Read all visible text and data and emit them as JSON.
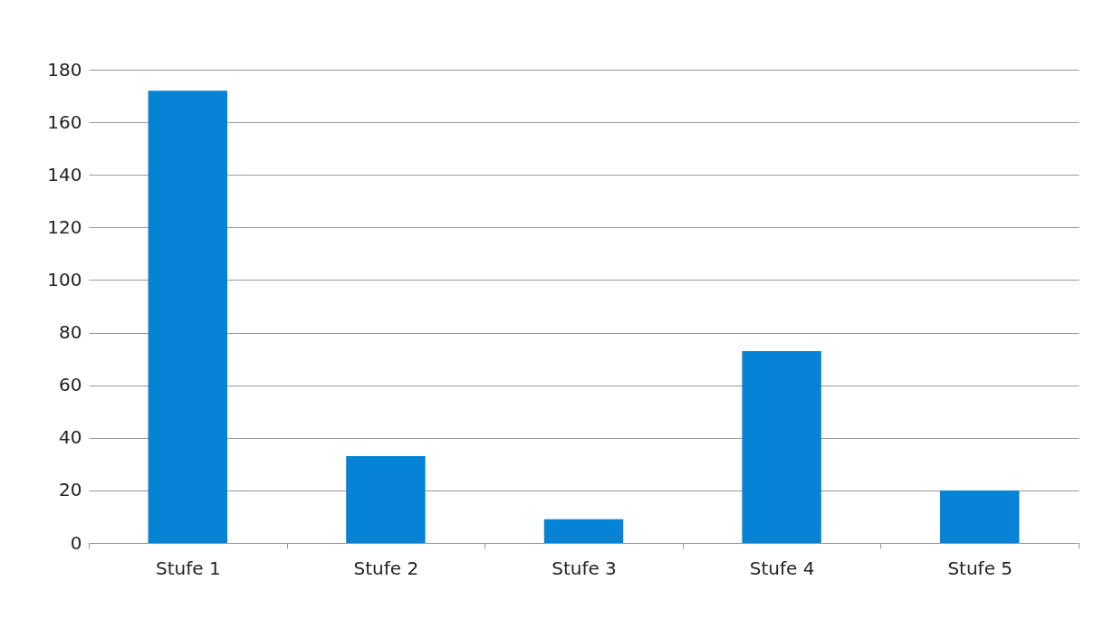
{
  "chart_data": {
    "type": "bar",
    "categories": [
      "Stufe 1",
      "Stufe 2",
      "Stufe 3",
      "Stufe 4",
      "Stufe 5"
    ],
    "values": [
      172,
      33,
      9,
      73,
      20
    ],
    "color": "#0683d4",
    "ylim": [
      0,
      180
    ],
    "yticks": [
      0,
      20,
      40,
      60,
      80,
      100,
      120,
      140,
      160,
      180
    ],
    "grid": "y"
  }
}
